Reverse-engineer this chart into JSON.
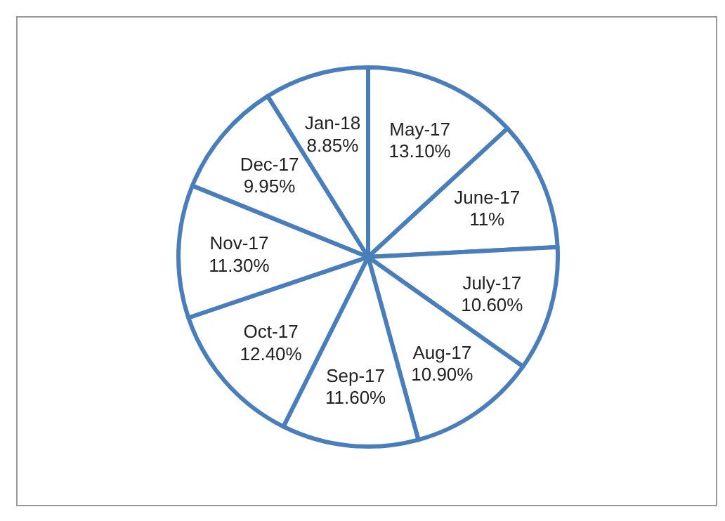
{
  "chart_data": {
    "type": "pie",
    "categories": [
      "May-17",
      "June-17",
      "July-17",
      "Aug-17",
      "Sep-17",
      "Oct-17",
      "Nov-17",
      "Dec-17",
      "Jan-18"
    ],
    "values": [
      13.1,
      11,
      10.6,
      10.9,
      11.6,
      12.4,
      11.3,
      9.95,
      8.85
    ],
    "value_labels": [
      "13.10%",
      "11%",
      "10.60%",
      "10.90%",
      "11.60%",
      "12.40%",
      "11.30%",
      "9.95%",
      "8.85%"
    ],
    "colors": [
      "#ffffff",
      "#ffffff",
      "#ffffff",
      "#ffffff",
      "#ffffff",
      "#ffffff",
      "#ffffff",
      "#ffffff",
      "#ffffff"
    ]
  }
}
